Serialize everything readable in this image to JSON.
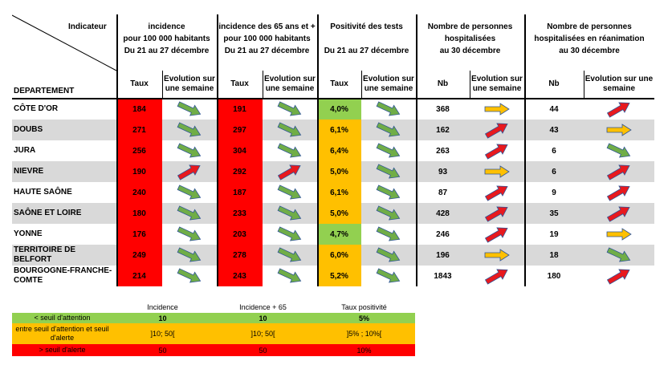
{
  "colors": {
    "red": "#ff0000",
    "orange": "#ffc000",
    "green": "#92d050",
    "gray_row": "#d9d9d9",
    "arrow_green": "#70ad47",
    "arrow_red": "#e8191e",
    "arrow_orange": "#ffc000"
  },
  "header": {
    "indicateur": "Indicateur",
    "departement": "DEPARTEMENT",
    "groups": [
      {
        "line1": "incidence",
        "line2": "pour 100 000 habitants",
        "line3": "Du 21 au 27 décembre"
      },
      {
        "line1": "incidence des 65 ans et +",
        "line2": "pour 100 000 habitants",
        "line3": "Du 21 au 27 décembre"
      },
      {
        "line1": "Positivité des tests",
        "line2": "",
        "line3": "Du 21 au 27 décembre"
      },
      {
        "line1": "Nombre de personnes",
        "line2": "hospitalisées",
        "line3": "au 30 décembre"
      },
      {
        "line1": "Nombre de personnes",
        "line2": "hospitalisées en réanimation",
        "line3": "au 30 décembre"
      }
    ],
    "sub": [
      "Taux",
      "Evolution sur une semaine",
      "Taux",
      "Evolution sur une semaine",
      "Taux",
      "Evolution sur une semaine",
      "Nb",
      "Evolution sur une semaine",
      "Nb",
      "Evolution sur une semaine"
    ]
  },
  "rows": [
    {
      "dept": "CÔTE D'OR",
      "inc": "184",
      "inc_c": "red",
      "inc_a": "green-down",
      "inc65": "191",
      "inc65_c": "red",
      "inc65_a": "green-down",
      "pos": "4,0%",
      "pos_c": "green",
      "pos_a": "green-down",
      "hosp": "368",
      "hosp_a": "orange-flat",
      "rea": "44",
      "rea_a": "red-up"
    },
    {
      "dept": "DOUBS",
      "inc": "271",
      "inc_c": "red",
      "inc_a": "green-down",
      "inc65": "297",
      "inc65_c": "red",
      "inc65_a": "green-down",
      "pos": "6,1%",
      "pos_c": "orange",
      "pos_a": "green-down",
      "hosp": "162",
      "hosp_a": "red-up",
      "rea": "43",
      "rea_a": "orange-flat"
    },
    {
      "dept": "JURA",
      "inc": "256",
      "inc_c": "red",
      "inc_a": "green-down",
      "inc65": "304",
      "inc65_c": "red",
      "inc65_a": "green-down",
      "pos": "6,4%",
      "pos_c": "orange",
      "pos_a": "green-down",
      "hosp": "263",
      "hosp_a": "red-up",
      "rea": "6",
      "rea_a": "green-down"
    },
    {
      "dept": "NIEVRE",
      "inc": "190",
      "inc_c": "red",
      "inc_a": "red-up",
      "inc65": "292",
      "inc65_c": "red",
      "inc65_a": "red-up",
      "pos": "5,0%",
      "pos_c": "orange",
      "pos_a": "green-down",
      "hosp": "93",
      "hosp_a": "orange-flat",
      "rea": "6",
      "rea_a": "red-up"
    },
    {
      "dept": "HAUTE SAÔNE",
      "inc": "240",
      "inc_c": "red",
      "inc_a": "green-down",
      "inc65": "187",
      "inc65_c": "red",
      "inc65_a": "green-down",
      "pos": "6,1%",
      "pos_c": "orange",
      "pos_a": "green-down",
      "hosp": "87",
      "hosp_a": "red-up",
      "rea": "9",
      "rea_a": "red-up"
    },
    {
      "dept": "SAÔNE ET LOIRE",
      "inc": "180",
      "inc_c": "red",
      "inc_a": "green-down",
      "inc65": "233",
      "inc65_c": "red",
      "inc65_a": "green-down",
      "pos": "5,0%",
      "pos_c": "orange",
      "pos_a": "green-down",
      "hosp": "428",
      "hosp_a": "red-up",
      "rea": "35",
      "rea_a": "red-up"
    },
    {
      "dept": "YONNE",
      "inc": "176",
      "inc_c": "red",
      "inc_a": "green-down",
      "inc65": "203",
      "inc65_c": "red",
      "inc65_a": "green-down",
      "pos": "4,7%",
      "pos_c": "green",
      "pos_a": "green-down",
      "hosp": "246",
      "hosp_a": "red-up",
      "rea": "19",
      "rea_a": "orange-flat"
    },
    {
      "dept": "TERRITOIRE DE BELFORT",
      "inc": "249",
      "inc_c": "red",
      "inc_a": "green-down",
      "inc65": "278",
      "inc65_c": "red",
      "inc65_a": "green-down",
      "pos": "6,0%",
      "pos_c": "orange",
      "pos_a": "green-down",
      "hosp": "196",
      "hosp_a": "orange-flat",
      "rea": "18",
      "rea_a": "green-down"
    },
    {
      "dept": "BOURGOGNE-FRANCHE-COMTE",
      "inc": "214",
      "inc_c": "red",
      "inc_a": "green-down",
      "inc65": "243",
      "inc65_c": "red",
      "inc65_a": "green-down",
      "pos": "5,2%",
      "pos_c": "orange",
      "pos_a": "green-down",
      "hosp": "1843",
      "hosp_a": "red-up",
      "rea": "180",
      "rea_a": "red-up"
    }
  ],
  "legend": {
    "headers": [
      "Incidence",
      "Incidence + 65",
      "Taux positivité"
    ],
    "rows": [
      {
        "label": "< seuil d'attention",
        "v1": "10",
        "v2": "10",
        "v3": "5%",
        "color": "green"
      },
      {
        "label": "entre seuil d'attention et seuil d'alerte",
        "v1": "]10; 50[",
        "v2": "]10; 50[",
        "v3": "]5% ; 10%[",
        "color": "orange"
      },
      {
        "label": "> seuil d'alerte",
        "v1": "50",
        "v2": "50",
        "v3": "10%",
        "color": "red"
      }
    ]
  }
}
